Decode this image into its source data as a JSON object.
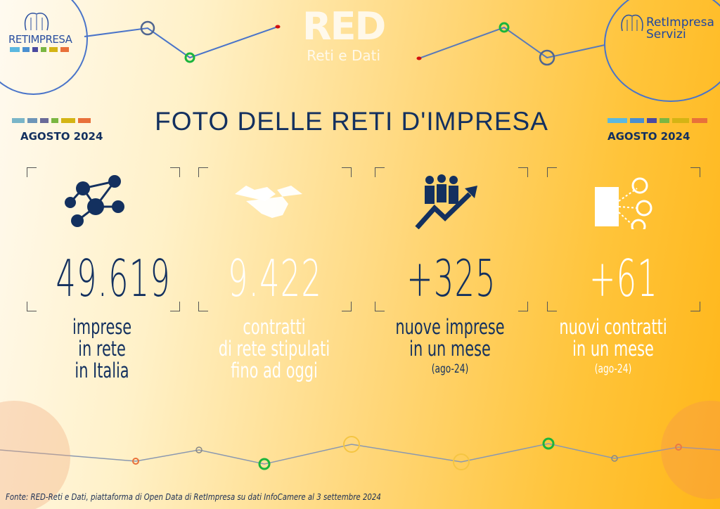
{
  "header": {
    "title": "FOTO DELLE RETI D'IMPRESA",
    "left_logo": "RETIMPRESA",
    "center_logo": "RED",
    "center_logo_sub": "Reti e Dati",
    "right_logo_line1": "RetImpresa",
    "right_logo_line2": "Servizi",
    "month_left": "AGOSTO 2024",
    "month_right": "AGOSTO  2024"
  },
  "brand_colors": [
    "#5bb8e0",
    "#4a8fd0",
    "#4b4aa0",
    "#7ab642",
    "#d4b414",
    "#e8703a"
  ],
  "stats": [
    {
      "value": "49.619",
      "label1": "imprese",
      "label2": "in rete",
      "label3": "in Italia",
      "icon": "network-people-icon",
      "color": "#13305f"
    },
    {
      "value": "9.422",
      "label1": "contratti",
      "label2": "di rete stipulati",
      "label3": "fino ad oggi",
      "icon": "handshake-icon",
      "color": "#ffffff"
    },
    {
      "value": "+325",
      "label1": "nuove imprese",
      "label2": "in un mese",
      "note": "(ago-24)",
      "icon": "people-growth-icon",
      "color": "#13305f"
    },
    {
      "value": "+61",
      "label1": "nuovi contratti",
      "label2": "in un mese",
      "note": "(ago-24)",
      "icon": "building-people-icon",
      "color": "#ffffff"
    }
  ],
  "footer": {
    "source": "Fonte: RED-Reti e Dati, piattaforma di Open Data di RetImpresa su dati InfoCamere al 3 settembre 2024"
  }
}
